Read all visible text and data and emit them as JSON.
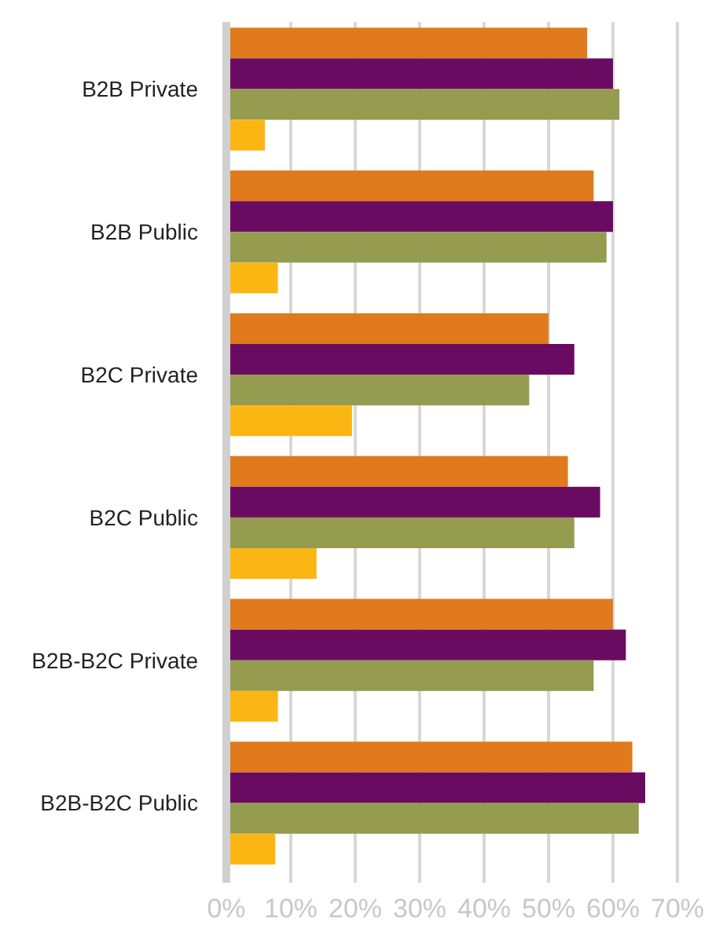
{
  "chart_data": {
    "type": "bar",
    "orientation": "horizontal",
    "categories": [
      "B2B Private",
      "B2B Public",
      "B2C Private",
      "B2C Public",
      "B2B-B2C Private",
      "B2B-B2C Public"
    ],
    "series": [
      {
        "color": "#e07a1c",
        "values": [
          56,
          57,
          50,
          53,
          60,
          63
        ]
      },
      {
        "color": "#6a0b62",
        "values": [
          60,
          60,
          54,
          58,
          62,
          65
        ]
      },
      {
        "color": "#959b4f",
        "values": [
          61,
          59,
          47,
          54,
          57,
          64
        ]
      },
      {
        "color": "#fbb614",
        "values": [
          6,
          8,
          19.5,
          14,
          8,
          7.6
        ]
      }
    ],
    "xlim": [
      0,
      70
    ],
    "xticks": [
      {
        "value": 0,
        "label": "0%"
      },
      {
        "value": 10,
        "label": "10%"
      },
      {
        "value": 20,
        "label": "20%"
      },
      {
        "value": 30,
        "label": "30%"
      },
      {
        "value": 40,
        "label": "40%"
      },
      {
        "value": 50,
        "label": "50%"
      },
      {
        "value": 60,
        "label": "60%"
      },
      {
        "value": 70,
        "label": "70%"
      }
    ],
    "grid": true
  }
}
